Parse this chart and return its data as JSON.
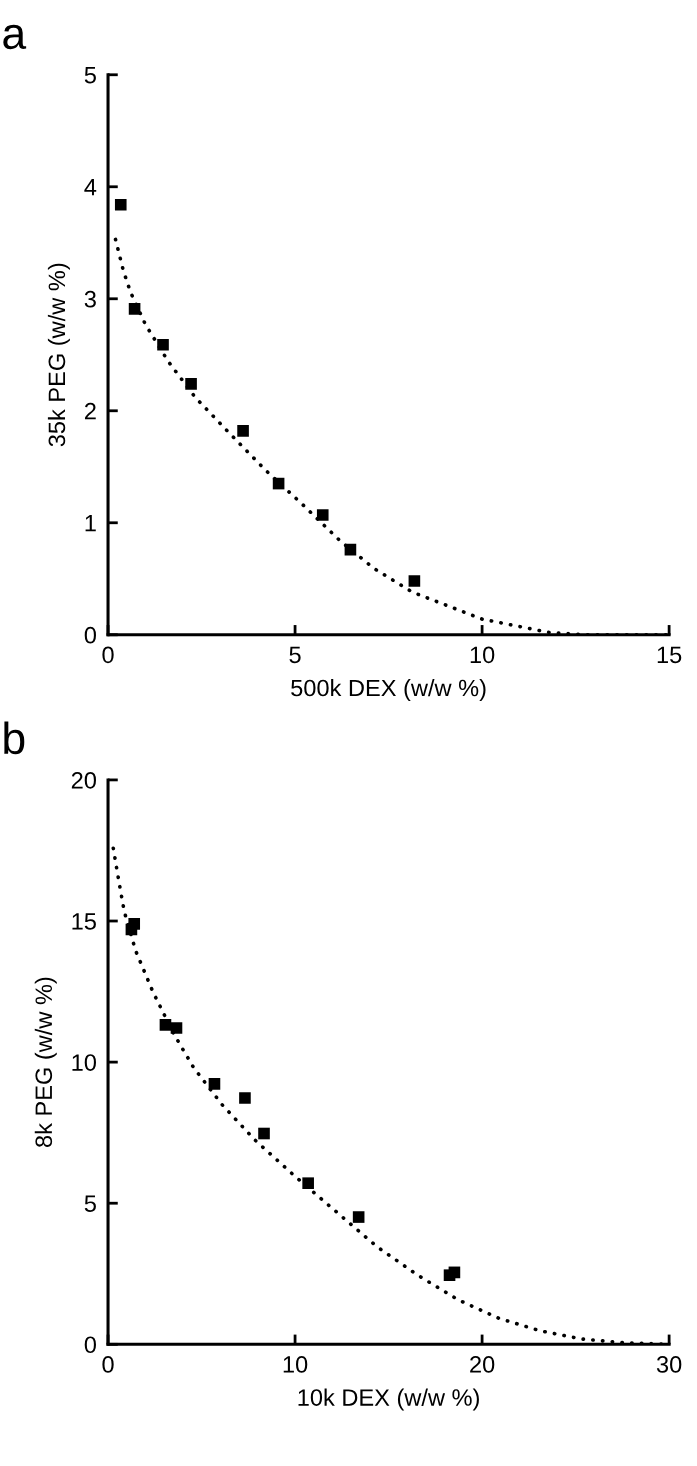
{
  "chart_data": [
    {
      "type": "scatter",
      "title": "a",
      "xlabel": "500k DEX (w/w %)",
      "ylabel": "35k PEG (w/w %)",
      "xlim": [
        0,
        15
      ],
      "ylim": [
        0,
        5
      ],
      "xticks": [
        0,
        5,
        10,
        15
      ],
      "yticks": [
        0,
        1,
        2,
        3,
        4,
        5
      ],
      "grid": false,
      "legend": false,
      "series": [
        {
          "color": "#000000",
          "marker": "square",
          "x": [
            0.34,
            0.71,
            1.47,
            2.22,
            3.61,
            4.56,
            5.74,
            6.48,
            8.19
          ],
          "values": [
            3.84,
            2.91,
            2.59,
            2.24,
            1.82,
            1.35,
            1.07,
            0.76,
            0.48
          ]
        },
        {
          "type": "line",
          "color": "#000000",
          "marker": "none",
          "line_style": "dotted",
          "x": [
            0.2,
            0.41,
            0.6,
            1.0,
            1.61,
            2.33,
            3.19,
            4.21,
            5.18,
            6.2,
            7.12,
            8.14,
            10,
            11.8,
            12.8,
            15
          ],
          "values": [
            3.53,
            3.25,
            3.06,
            2.77,
            2.44,
            2.12,
            1.82,
            1.47,
            1.17,
            0.84,
            0.59,
            0.38,
            0.14,
            0.02,
            0.0,
            0.0
          ]
        }
      ]
    },
    {
      "type": "scatter",
      "title": "b",
      "xlabel": "10k DEX (w/w %)",
      "ylabel": "8k PEG (w/w %)",
      "xlim": [
        0,
        30
      ],
      "ylim": [
        0,
        20
      ],
      "xticks": [
        0,
        10,
        20,
        30
      ],
      "yticks": [
        0,
        5,
        10,
        15,
        20
      ],
      "grid": false,
      "legend": false,
      "series": [
        {
          "color": "#000000",
          "marker": "square",
          "x": [
            1.25,
            1.4,
            3.07,
            3.66,
            5.69,
            7.32,
            8.34,
            10.7,
            13.4,
            18.26,
            18.52
          ],
          "values": [
            14.7,
            14.9,
            11.32,
            11.21,
            9.23,
            8.73,
            7.47,
            5.71,
            4.51,
            2.45,
            2.55
          ]
        },
        {
          "type": "line",
          "color": "#000000",
          "marker": "none",
          "line_style": "dotted",
          "x": [
            0.28,
            0.61,
            0.87,
            1.48,
            2.4,
            3.49,
            4.58,
            6.1,
            7.84,
            10.02,
            12.2,
            14.38,
            16.56,
            18.74,
            20.9,
            23.1,
            25.3,
            27.5,
            30
          ],
          "values": [
            17.58,
            16.29,
            15.33,
            13.94,
            12.49,
            11.03,
            9.8,
            8.49,
            7.25,
            5.94,
            4.7,
            3.46,
            2.45,
            1.57,
            0.92,
            0.48,
            0.19,
            0.06,
            0.0
          ]
        }
      ]
    }
  ]
}
